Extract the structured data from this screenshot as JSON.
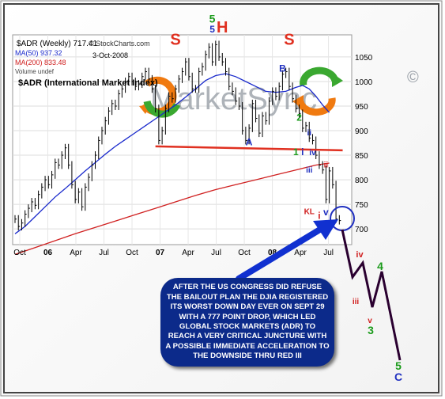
{
  "header": {
    "symbol_line": "$ADR (Weekly) 717.41",
    "ma50_label": "MA(50) 937.32",
    "ma200_label": "MA(200) 833.48",
    "volume_label": "Volume undef",
    "copyright": "© StockCharts.com",
    "date": "3-Oct-2008",
    "name_line": "$ADR (International Market Index)"
  },
  "watermark": {
    "text": "MarketSync",
    "symbol": "©"
  },
  "callout_text": "AFTER THE US CONGRESS DID REFUSE THE BAILOUT PLAN THE DJIA REGISTERED ITS WORST DOWN DAY EVER ON SEPT 29 WITH A 777 POINT DROP, WHICH LED GLOBAL STOCK MARKETS (ADR) TO REACH A VERY CRITICAL JUNCTURE WITH A POSSIBLE IMMEDIATE ACCELERATION TO THE DOWNSIDE THRU RED III",
  "chart_data": {
    "type": "line",
    "y_axis": {
      "ticks": [
        700,
        750,
        800,
        850,
        900,
        950,
        1000,
        1050
      ],
      "ylim": [
        668,
        1095
      ]
    },
    "x_axis": {
      "ticks": [
        "Oct",
        "06",
        "Apr",
        "Jul",
        "Oct",
        "07",
        "Apr",
        "Jul",
        "Oct",
        "08",
        "Apr",
        "Jul"
      ]
    },
    "series": [
      {
        "name": "MA(50)",
        "color": "#1a2acc",
        "values": [
          [
            0.0,
            690
          ],
          [
            3,
            705
          ],
          [
            6,
            725
          ],
          [
            9,
            745
          ],
          [
            12,
            765
          ],
          [
            15,
            782
          ],
          [
            18,
            800
          ],
          [
            21,
            818
          ],
          [
            24,
            835
          ],
          [
            27,
            852
          ],
          [
            30,
            868
          ],
          [
            33,
            882
          ],
          [
            36,
            896
          ],
          [
            39,
            910
          ],
          [
            42,
            924
          ],
          [
            45,
            938
          ],
          [
            48,
            952
          ],
          [
            51,
            968
          ],
          [
            54,
            985
          ],
          [
            57,
            1002
          ],
          [
            60,
            1012
          ],
          [
            63,
            1016
          ],
          [
            66,
            1010
          ],
          [
            69,
            1000
          ],
          [
            72,
            990
          ],
          [
            75,
            980
          ],
          [
            78,
            978
          ],
          [
            81,
            980
          ],
          [
            84,
            988
          ],
          [
            86,
            992
          ],
          [
            88,
            985
          ],
          [
            90,
            970
          ],
          [
            92,
            952
          ],
          [
            94,
            937
          ]
        ]
      },
      {
        "name": "MA(200)",
        "color": "#d02020",
        "values": [
          [
            0.0,
            648
          ],
          [
            6,
            662
          ],
          [
            12,
            676
          ],
          [
            18,
            690
          ],
          [
            24,
            703
          ],
          [
            30,
            716
          ],
          [
            36,
            729
          ],
          [
            42,
            742
          ],
          [
            48,
            755
          ],
          [
            54,
            768
          ],
          [
            60,
            780
          ],
          [
            66,
            790
          ],
          [
            72,
            800
          ],
          [
            78,
            810
          ],
          [
            84,
            820
          ],
          [
            90,
            830
          ],
          [
            94,
            834
          ]
        ]
      },
      {
        "name": "ADR",
        "color": "#000000",
        "values": [
          [
            0.0,
            720
          ],
          [
            1,
            705
          ],
          [
            2,
            712
          ],
          [
            3,
            730
          ],
          [
            4,
            742
          ],
          [
            5,
            755
          ],
          [
            6,
            748
          ],
          [
            7,
            770
          ],
          [
            8,
            785
          ],
          [
            9,
            800
          ],
          [
            10,
            790
          ],
          [
            11,
            810
          ],
          [
            12,
            835
          ],
          [
            13,
            830
          ],
          [
            14,
            850
          ],
          [
            15,
            865
          ],
          [
            16,
            830
          ],
          [
            17,
            790
          ],
          [
            18,
            760
          ],
          [
            19,
            775
          ],
          [
            20,
            745
          ],
          [
            21,
            785
          ],
          [
            22,
            805
          ],
          [
            23,
            830
          ],
          [
            24,
            850
          ],
          [
            25,
            880
          ],
          [
            26,
            900
          ],
          [
            27,
            920
          ],
          [
            28,
            940
          ],
          [
            29,
            955
          ],
          [
            30,
            950
          ],
          [
            31,
            975
          ],
          [
            32,
            985
          ],
          [
            33,
            1000
          ],
          [
            34,
            1010
          ],
          [
            35,
            1000
          ],
          [
            36,
            990
          ],
          [
            37,
            995
          ],
          [
            38,
            1010
          ],
          [
            39,
            1020
          ],
          [
            40,
            1005
          ],
          [
            41,
            985
          ],
          [
            42,
            945
          ],
          [
            43,
            880
          ],
          [
            44,
            900
          ],
          [
            45,
            945
          ],
          [
            46,
            970
          ],
          [
            47,
            965
          ],
          [
            48,
            985
          ],
          [
            49,
            1005
          ],
          [
            50,
            1020
          ],
          [
            51,
            1040
          ],
          [
            52,
            1010
          ],
          [
            53,
            985
          ],
          [
            54,
            985
          ],
          [
            55,
            1020
          ],
          [
            56,
            1030
          ],
          [
            57,
            1055
          ],
          [
            58,
            1070
          ],
          [
            59,
            1040
          ],
          [
            60,
            1075
          ],
          [
            61,
            1050
          ],
          [
            62,
            1040
          ],
          [
            63,
            1020
          ],
          [
            64,
            990
          ],
          [
            65,
            980
          ],
          [
            66,
            960
          ],
          [
            67,
            950
          ],
          [
            68,
            900
          ],
          [
            69,
            880
          ],
          [
            70,
            905
          ],
          [
            71,
            955
          ],
          [
            72,
            925
          ],
          [
            73,
            895
          ],
          [
            74,
            930
          ],
          [
            75,
            920
          ],
          [
            76,
            960
          ],
          [
            77,
            980
          ],
          [
            78,
            970
          ],
          [
            79,
            990
          ],
          [
            80,
            1015
          ],
          [
            81,
            1020
          ],
          [
            82,
            990
          ],
          [
            83,
            965
          ],
          [
            84,
            945
          ],
          [
            85,
            935
          ],
          [
            86,
            905
          ],
          [
            87,
            910
          ],
          [
            88,
            885
          ],
          [
            89,
            880
          ],
          [
            90,
            850
          ],
          [
            91,
            830
          ],
          [
            92,
            820
          ],
          [
            93,
            760
          ],
          [
            94,
            818
          ],
          [
            95,
            790
          ],
          [
            96,
            720
          ],
          [
            97,
            717
          ]
        ]
      }
    ],
    "neckline": {
      "color": "#e03020",
      "from": [
        42,
        868
      ],
      "to": [
        98,
        860
      ]
    },
    "annotations": [
      {
        "text": "5",
        "color": "#1a9a1a",
        "at": [
          59,
          1120
        ]
      },
      {
        "text": "5",
        "color": "#2030c0",
        "at": [
          59,
          1100
        ]
      },
      {
        "text": "H",
        "color": "#e03020",
        "at": [
          62,
          1100
        ]
      },
      {
        "text": "S",
        "color": "#e03020",
        "at": [
          48,
          1075
        ]
      },
      {
        "text": "S",
        "color": "#e03020",
        "at": [
          82,
          1075
        ]
      },
      {
        "text": "B",
        "color": "#2030c0",
        "at": [
          80,
          1020
        ]
      },
      {
        "text": "A",
        "color": "#2030c0",
        "at": [
          70,
          870
        ]
      },
      {
        "text": "2",
        "color": "#1a9a1a",
        "at": [
          85,
          920
        ]
      },
      {
        "text": "ii",
        "color": "#2030c0",
        "at": [
          88,
          890
        ]
      },
      {
        "text": "1",
        "color": "#1a9a1a",
        "at": [
          84,
          850
        ]
      },
      {
        "text": "i",
        "color": "#2030c0",
        "at": [
          86,
          850
        ]
      },
      {
        "text": "iv",
        "color": "#2030c0",
        "at": [
          89,
          850
        ]
      },
      {
        "text": "iii",
        "color": "#2030c0",
        "at": [
          88,
          815
        ]
      },
      {
        "text": "ii",
        "color": "#d02020",
        "at": [
          93,
          825
        ]
      },
      {
        "text": "KL",
        "color": "#d02020",
        "at": [
          88,
          730
        ]
      },
      {
        "text": "i",
        "color": "#d02020",
        "at": [
          91,
          720
        ]
      },
      {
        "text": "v",
        "color": "#2030c0",
        "at": [
          93,
          728
        ]
      }
    ],
    "projection": {
      "purple_path": [
        [
          0,
          0
        ],
        [
          1,
          1
        ],
        [
          2,
          2
        ],
        [
          3,
          3
        ],
        [
          4,
          4
        ],
        [
          5,
          5
        ],
        [
          6,
          6
        ],
        [
          7,
          7
        ]
      ],
      "labels": [
        {
          "text": "iv",
          "color": "#d02020"
        },
        {
          "text": "iii",
          "color": "#d02020"
        },
        {
          "text": "4",
          "color": "#1a9a1a"
        },
        {
          "text": "v",
          "color": "#d02020"
        },
        {
          "text": "3",
          "color": "#1a9a1a"
        },
        {
          "text": "5",
          "color": "#1a9a1a"
        },
        {
          "text": "C",
          "color": "#2030c0"
        }
      ]
    }
  }
}
